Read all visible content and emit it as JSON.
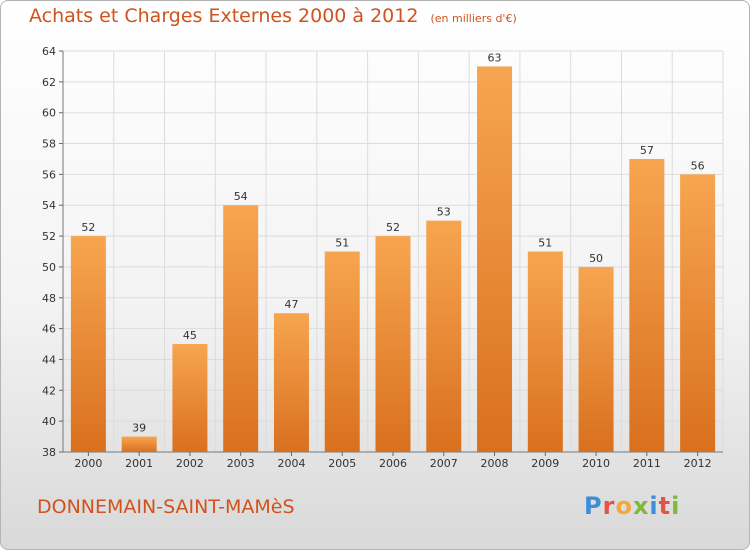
{
  "title": "Achats et Charges Externes 2000 à 2012",
  "subtitle": "(en milliers d'€)",
  "location": "DONNEMAIN-SAINT-MAMèS",
  "brand": {
    "letters": [
      {
        "char": "P",
        "color": "#3a8fd8"
      },
      {
        "char": "r",
        "color": "#e2534a"
      },
      {
        "char": "o",
        "color": "#f2a93b"
      },
      {
        "char": "x",
        "color": "#7fb93d"
      },
      {
        "char": "i",
        "color": "#3a8fd8"
      },
      {
        "char": "t",
        "color": "#e2534a"
      },
      {
        "char": "i",
        "color": "#7fb93d"
      }
    ]
  },
  "colors": {
    "bar_top": "#f7a550",
    "bar_bottom": "#d9701e",
    "title": "#d0531e",
    "grid": "#dcdcdc"
  },
  "chart_data": {
    "type": "bar",
    "title": "Achats et Charges Externes 2000 à 2012",
    "subtitle": "(en milliers d'€)",
    "categories": [
      "2000",
      "2001",
      "2002",
      "2003",
      "2004",
      "2005",
      "2006",
      "2007",
      "2008",
      "2009",
      "2010",
      "2011",
      "2012"
    ],
    "values": [
      52,
      39,
      45,
      54,
      47,
      51,
      52,
      53,
      63,
      51,
      50,
      57,
      56
    ],
    "xlabel": "",
    "ylabel": "",
    "ylim": [
      38,
      64
    ],
    "yticks": [
      38,
      40,
      42,
      44,
      46,
      48,
      50,
      52,
      54,
      56,
      58,
      60,
      62,
      64
    ],
    "grid": true,
    "data_labels": true
  }
}
